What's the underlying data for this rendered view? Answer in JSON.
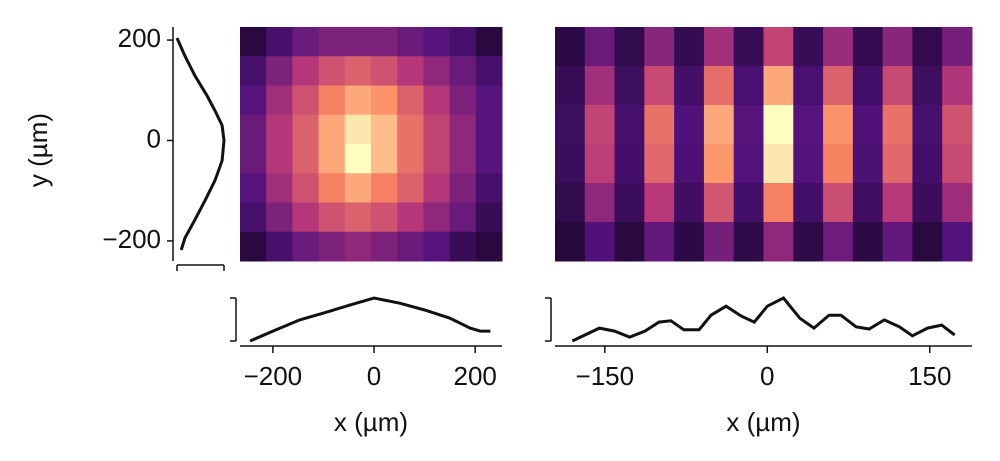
{
  "chart_data": [
    {
      "type": "heatmap",
      "colormap": "magma",
      "xlabel": "x (µm)",
      "ylabel": "y (µm)",
      "xlim": [
        -265,
        253
      ],
      "xticks": [
        {
          "value": -200,
          "label": "−200"
        },
        0,
        200
      ],
      "ylim": [
        -240,
        226
      ],
      "yticks": [
        {
          "value": -200,
          "label": "−200"
        },
        0,
        200
      ],
      "values": [
        [
          0.05,
          0.15,
          0.25,
          0.3,
          0.3,
          0.3,
          0.25,
          0.2,
          0.15,
          0.05
        ],
        [
          0.15,
          0.3,
          0.45,
          0.55,
          0.6,
          0.55,
          0.45,
          0.35,
          0.25,
          0.15
        ],
        [
          0.2,
          0.4,
          0.55,
          0.7,
          0.8,
          0.75,
          0.6,
          0.45,
          0.3,
          0.2
        ],
        [
          0.25,
          0.45,
          0.6,
          0.8,
          0.95,
          0.85,
          0.65,
          0.5,
          0.35,
          0.2
        ],
        [
          0.25,
          0.45,
          0.6,
          0.8,
          1,
          0.85,
          0.65,
          0.5,
          0.35,
          0.2
        ],
        [
          0.2,
          0.4,
          0.55,
          0.7,
          0.8,
          0.7,
          0.6,
          0.45,
          0.3,
          0.15
        ],
        [
          0.15,
          0.3,
          0.45,
          0.55,
          0.6,
          0.55,
          0.45,
          0.35,
          0.25,
          0.1
        ],
        [
          0.05,
          0.15,
          0.25,
          0.3,
          0.35,
          0.3,
          0.25,
          0.2,
          0.1,
          0.05
        ]
      ],
      "plim": [
        0,
        1
      ],
      "pticks": [
        0,
        1
      ],
      "x_profile": {
        "x": [
          -245,
          -200,
          -147,
          -100,
          -47,
          0,
          51,
          100,
          150,
          190,
          210,
          230
        ],
        "values": [
          0,
          0.23,
          0.49,
          0.65,
          0.84,
          1,
          0.88,
          0.72,
          0.53,
          0.3,
          0.23,
          0.23
        ]
      },
      "y_profile": {
        "y": [
          204,
          168,
          129,
          89,
          59,
          30,
          0,
          -40,
          -79,
          -119,
          -158,
          -194,
          -218
        ],
        "values": [
          0,
          0.17,
          0.38,
          0.64,
          0.81,
          0.96,
          1,
          0.96,
          0.81,
          0.6,
          0.38,
          0.17,
          0.09
        ]
      }
    },
    {
      "type": "heatmap",
      "colormap": "magma",
      "xlabel": "x (µm)",
      "xlim": [
        -196,
        189
      ],
      "xticks": [
        {
          "value": -150,
          "label": "−150"
        },
        0,
        150
      ],
      "ylim": [
        -240,
        226
      ],
      "values": [
        [
          0.06,
          0.25,
          0.08,
          0.33,
          0.09,
          0.4,
          0.1,
          0.5,
          0.1,
          0.38,
          0.09,
          0.33,
          0.08,
          0.28
        ],
        [
          0.1,
          0.4,
          0.12,
          0.52,
          0.14,
          0.64,
          0.16,
          0.8,
          0.16,
          0.6,
          0.14,
          0.52,
          0.12,
          0.44
        ],
        [
          0.12,
          0.5,
          0.15,
          0.65,
          0.18,
          0.8,
          0.2,
          1,
          0.2,
          0.75,
          0.18,
          0.65,
          0.15,
          0.55
        ],
        [
          0.11,
          0.48,
          0.14,
          0.62,
          0.17,
          0.76,
          0.19,
          0.95,
          0.19,
          0.71,
          0.17,
          0.62,
          0.14,
          0.52
        ],
        [
          0.08,
          0.35,
          0.11,
          0.46,
          0.13,
          0.56,
          0.14,
          0.7,
          0.14,
          0.53,
          0.13,
          0.46,
          0.11,
          0.39
        ],
        [
          0.04,
          0.18,
          0.05,
          0.23,
          0.06,
          0.28,
          0.07,
          0.35,
          0.07,
          0.26,
          0.06,
          0.23,
          0.05,
          0.19
        ]
      ],
      "plim": [
        0,
        1
      ],
      "pticks": [
        0,
        1
      ],
      "x_profile": {
        "x": [
          -180,
          -155,
          -141,
          -127,
          -113,
          -100,
          -89,
          -77,
          -63,
          -52,
          -38,
          -24,
          -12,
          0,
          15,
          30,
          43,
          57,
          68,
          82,
          94,
          108,
          122,
          134,
          148,
          161,
          173
        ],
        "values": [
          0,
          0.3,
          0.23,
          0.09,
          0.23,
          0.44,
          0.47,
          0.26,
          0.26,
          0.6,
          0.81,
          0.58,
          0.44,
          0.81,
          1,
          0.53,
          0.3,
          0.6,
          0.6,
          0.33,
          0.28,
          0.49,
          0.33,
          0.12,
          0.3,
          0.37,
          0.14
        ]
      }
    }
  ]
}
